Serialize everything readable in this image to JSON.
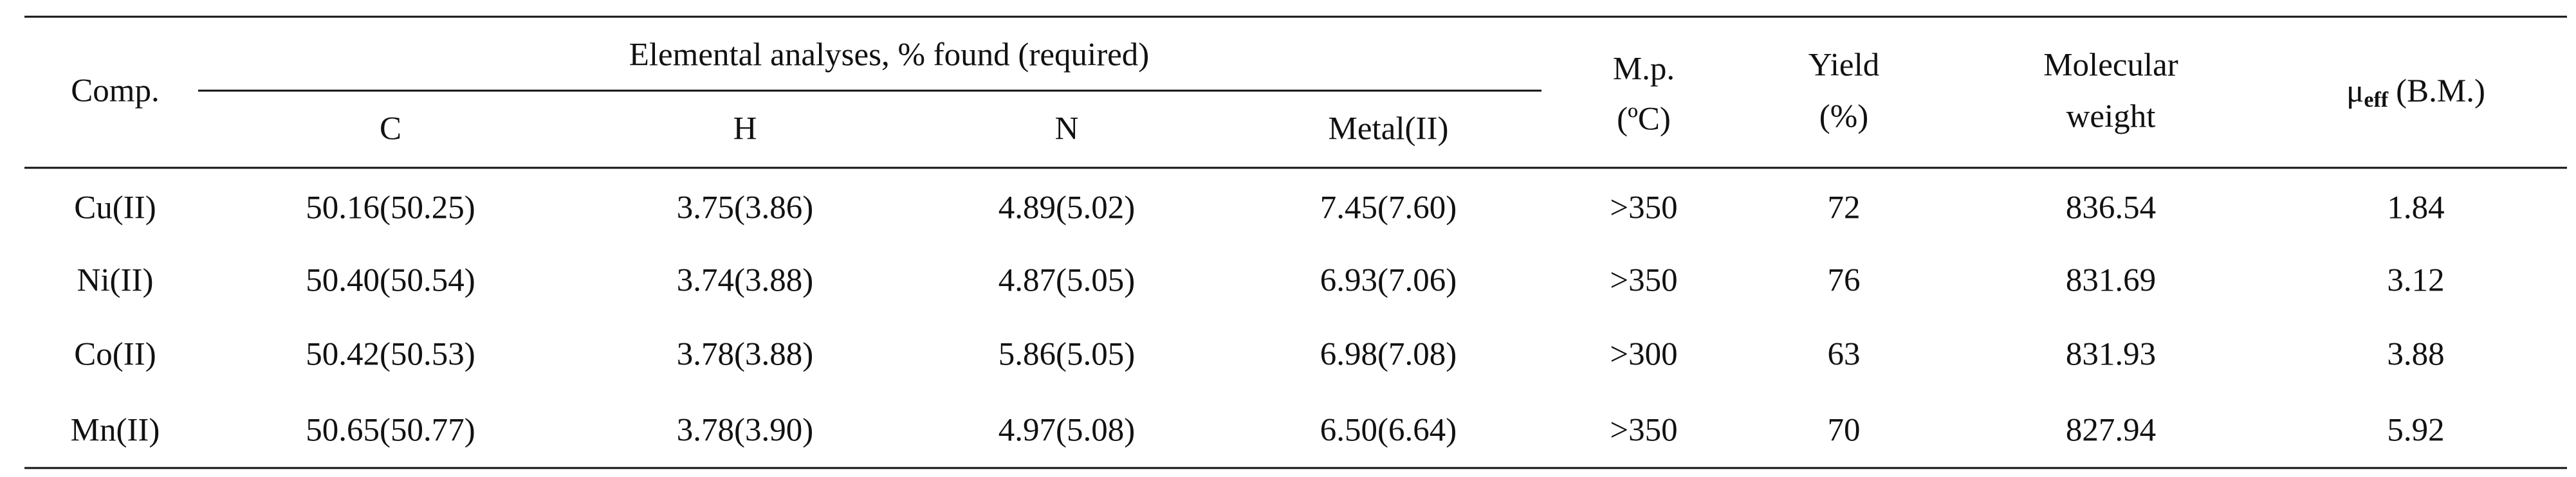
{
  "table": {
    "header": {
      "comp": "Comp.",
      "group": "Elemental analyses, % found (required)",
      "sub": [
        "C",
        "H",
        "N",
        "Metal(II)"
      ],
      "mp": [
        "M.p.",
        "(ºC)"
      ],
      "yield": [
        "Yield",
        "(%)"
      ],
      "mw": [
        "Molecular",
        "weight"
      ],
      "mu": {
        "symbol": "μ",
        "subscript": "eff",
        "unit": "(B.M.)"
      }
    },
    "rows": [
      [
        "Cu(II)",
        "50.16(50.25)",
        "3.75(3.86)",
        "4.89(5.02)",
        "7.45(7.60)",
        ">350",
        "72",
        "836.54",
        "1.84"
      ],
      [
        "Ni(II)",
        "50.40(50.54)",
        "3.74(3.88)",
        "4.87(5.05)",
        "6.93(7.06)",
        ">350",
        "76",
        "831.69",
        "3.12"
      ],
      [
        "Co(II)",
        "50.42(50.53)",
        "3.78(3.88)",
        "5.86(5.05)",
        "6.98(7.08)",
        ">300",
        "63",
        "831.93",
        "3.88"
      ],
      [
        "Mn(II)",
        "50.65(50.77)",
        "3.78(3.90)",
        "4.97(5.08)",
        "6.50(6.64)",
        ">350",
        "70",
        "827.94",
        "5.92"
      ]
    ]
  }
}
